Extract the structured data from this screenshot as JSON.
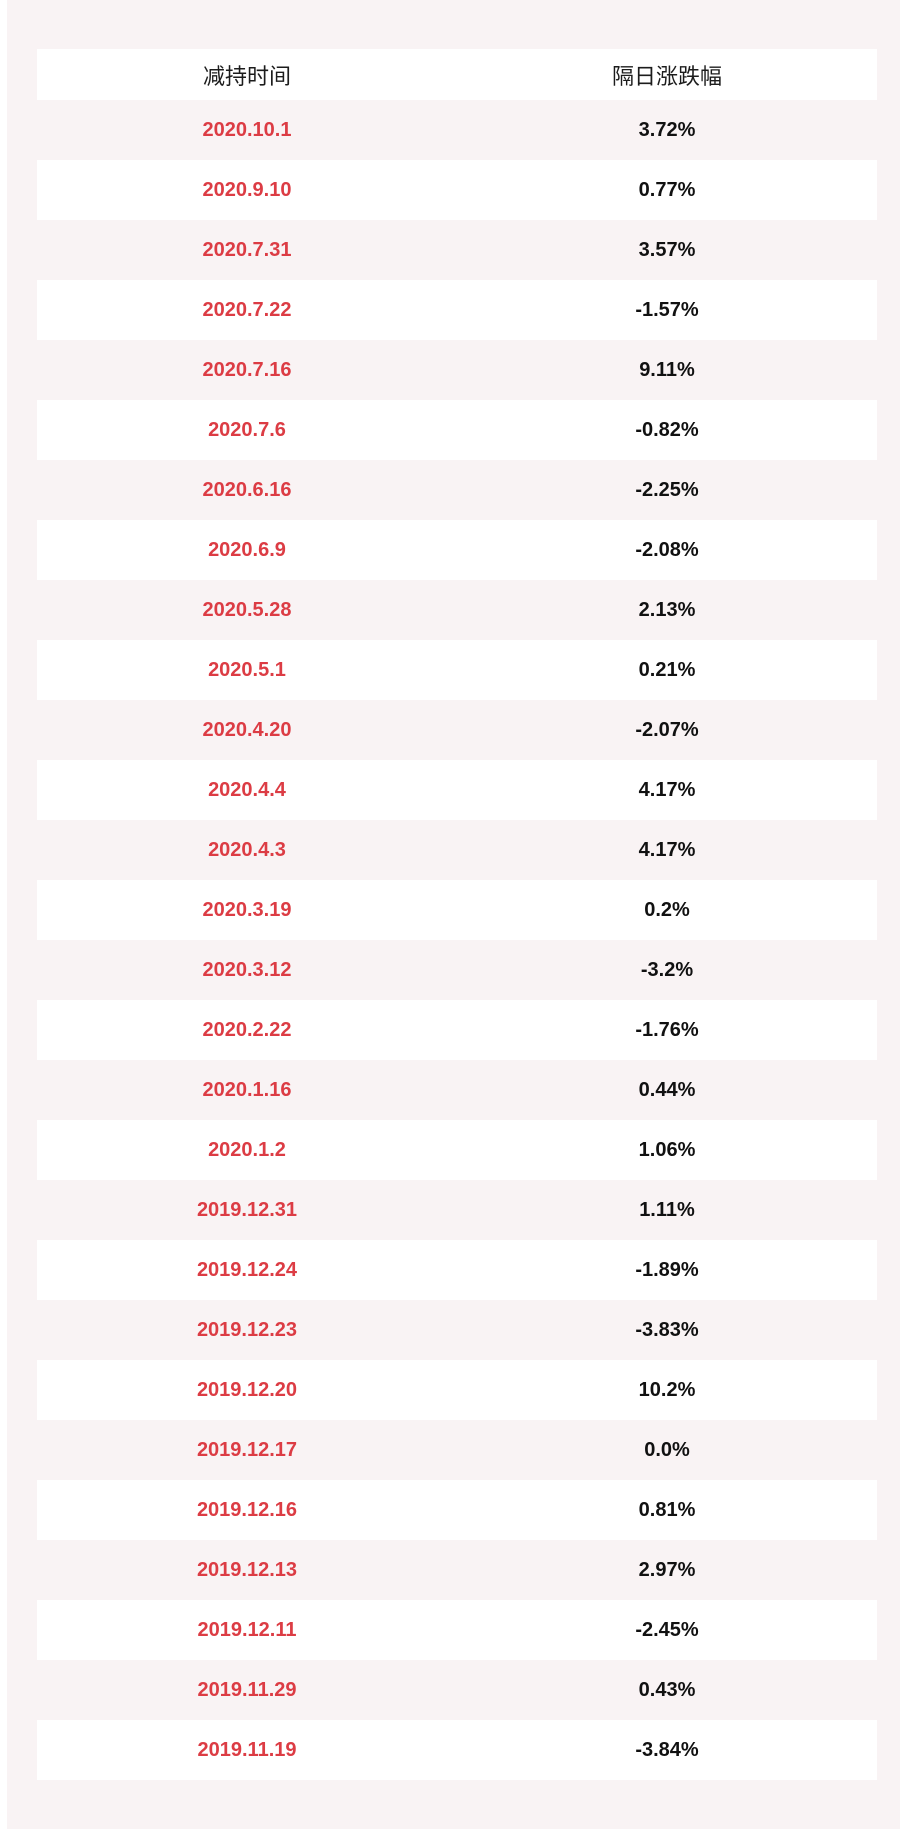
{
  "page": {
    "background_color": "#f9f3f4",
    "row_alt_color": "#ffffff",
    "date_color": "#dc3c44",
    "value_color": "#111111"
  },
  "chart_data": {
    "type": "table",
    "title": "",
    "columns": [
      "减持时间",
      "隔日涨跌幅"
    ],
    "rows": [
      [
        "2020.10.1",
        "3.72%"
      ],
      [
        "2020.9.10",
        "0.77%"
      ],
      [
        "2020.7.31",
        "3.57%"
      ],
      [
        "2020.7.22",
        "-1.57%"
      ],
      [
        "2020.7.16",
        "9.11%"
      ],
      [
        "2020.7.6",
        "-0.82%"
      ],
      [
        "2020.6.16",
        "-2.25%"
      ],
      [
        "2020.6.9",
        "-2.08%"
      ],
      [
        "2020.5.28",
        "2.13%"
      ],
      [
        "2020.5.1",
        "0.21%"
      ],
      [
        "2020.4.20",
        "-2.07%"
      ],
      [
        "2020.4.4",
        "4.17%"
      ],
      [
        "2020.4.3",
        "4.17%"
      ],
      [
        "2020.3.19",
        "0.2%"
      ],
      [
        "2020.3.12",
        "-3.2%"
      ],
      [
        "2020.2.22",
        "-1.76%"
      ],
      [
        "2020.1.16",
        "0.44%"
      ],
      [
        "2020.1.2",
        "1.06%"
      ],
      [
        "2019.12.31",
        "1.11%"
      ],
      [
        "2019.12.24",
        "-1.89%"
      ],
      [
        "2019.12.23",
        "-3.83%"
      ],
      [
        "2019.12.20",
        "10.2%"
      ],
      [
        "2019.12.17",
        "0.0%"
      ],
      [
        "2019.12.16",
        "0.81%"
      ],
      [
        "2019.12.13",
        "2.97%"
      ],
      [
        "2019.12.11",
        "-2.45%"
      ],
      [
        "2019.11.29",
        "0.43%"
      ],
      [
        "2019.11.19",
        "-3.84%"
      ]
    ]
  }
}
